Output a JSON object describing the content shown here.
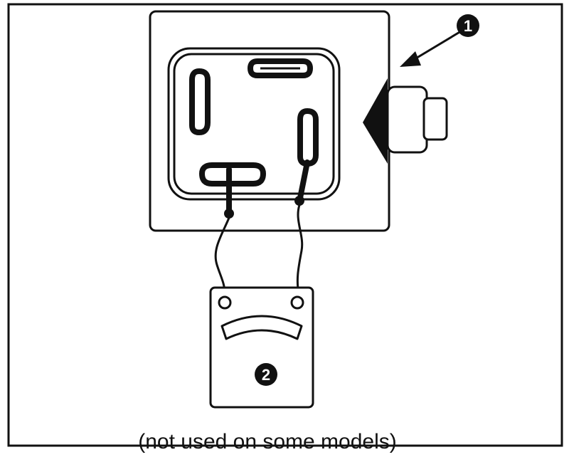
{
  "caption": "(not used on some models)",
  "callouts": [
    {
      "number": "1",
      "target": "connector-housing"
    },
    {
      "number": "2",
      "target": "ohmmeter"
    }
  ],
  "colors": {
    "line": "#111111",
    "fill_dark": "#111111",
    "background": "#ffffff"
  },
  "icons": [
    "arrow-icon",
    "meter-dial-icon",
    "terminal-slot-icon",
    "wire-lead-icon"
  ]
}
